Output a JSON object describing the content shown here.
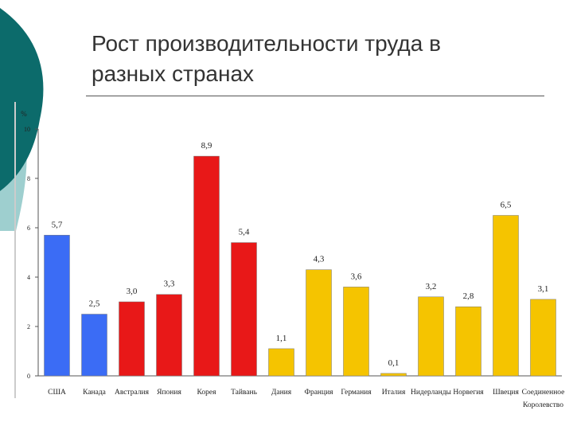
{
  "slide": {
    "title_line1": "Рост производительности труда в",
    "title_line2": "разных странах"
  },
  "colors": {
    "decor": "#0c6b6b",
    "decor_light": "#9ecfcf"
  },
  "chart_data": {
    "type": "bar",
    "title": "",
    "ylabel": "%",
    "xlabel": "",
    "ylim": [
      0,
      10
    ],
    "yticks": [
      0,
      2,
      4,
      6,
      8,
      10
    ],
    "grid": false,
    "categories": [
      "США",
      "Канада",
      "Австралия",
      "Япония",
      "Корея",
      "Тайвань",
      "Дания",
      "Франция",
      "Германия",
      "Италия",
      "Нидерланды",
      "Норвегия",
      "Швеция",
      "Соединенное Королевство"
    ],
    "category_labels": [
      [
        "США"
      ],
      [
        "Канада"
      ],
      [
        "Австралия"
      ],
      [
        "Япония"
      ],
      [
        "Корея"
      ],
      [
        "Тайвань"
      ],
      [
        "Дания"
      ],
      [
        "Франция"
      ],
      [
        "Германия"
      ],
      [
        "Италия"
      ],
      [
        "Нидерланды"
      ],
      [
        "Норвегия"
      ],
      [
        "Швеция"
      ],
      [
        "Соединенное",
        "Королевство"
      ]
    ],
    "values": [
      5.7,
      2.5,
      3.0,
      3.3,
      8.9,
      5.4,
      1.1,
      4.3,
      3.6,
      0.1,
      3.2,
      2.8,
      6.5,
      3.1
    ],
    "value_labels": [
      "5,7",
      "2,5",
      "3,0",
      "3,3",
      "8,9",
      "5,4",
      "1,1",
      "4,3",
      "3,6",
      "0,1",
      "3,2",
      "2,8",
      "6,5",
      "3,1"
    ],
    "bar_colors": [
      "#3b6cf5",
      "#3b6cf5",
      "#e81818",
      "#e81818",
      "#e81818",
      "#e81818",
      "#f5c400",
      "#f5c400",
      "#f5c400",
      "#f5c400",
      "#f5c400",
      "#f5c400",
      "#f5c400",
      "#f5c400"
    ]
  }
}
